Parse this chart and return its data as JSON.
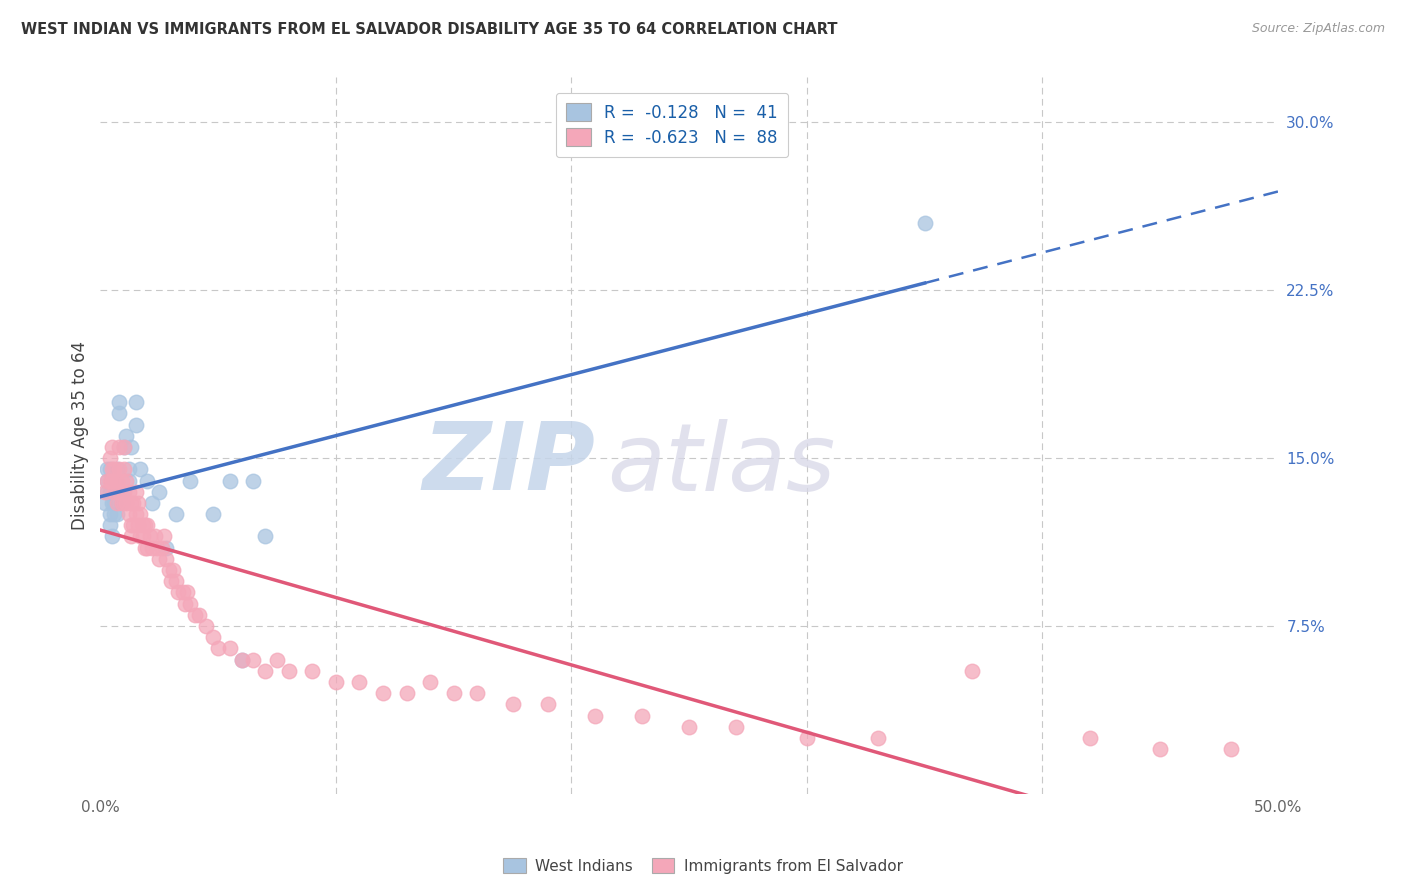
{
  "title": "WEST INDIAN VS IMMIGRANTS FROM EL SALVADOR DISABILITY AGE 35 TO 64 CORRELATION CHART",
  "source": "Source: ZipAtlas.com",
  "ylabel": "Disability Age 35 to 64",
  "xlim": [
    0.0,
    0.5
  ],
  "ylim": [
    0.0,
    0.32
  ],
  "yticks_right": [
    0.075,
    0.15,
    0.225,
    0.3
  ],
  "ytick_labels_right": [
    "7.5%",
    "15.0%",
    "22.5%",
    "30.0%"
  ],
  "grid_color": "#c8c8c8",
  "background_color": "#ffffff",
  "west_indians_color": "#a8c4e0",
  "el_salvador_color": "#f4a7b9",
  "west_indians_line_color": "#4472c4",
  "el_salvador_line_color": "#e05878",
  "legend_label_1": "R =  -0.128   N =  41",
  "legend_label_2": "R =  -0.623   N =  88",
  "legend_bottom_1": "West Indians",
  "legend_bottom_2": "Immigrants from El Salvador",
  "west_indians_x": [
    0.002,
    0.003,
    0.003,
    0.003,
    0.004,
    0.004,
    0.004,
    0.004,
    0.005,
    0.005,
    0.005,
    0.006,
    0.006,
    0.006,
    0.007,
    0.007,
    0.007,
    0.008,
    0.008,
    0.009,
    0.009,
    0.01,
    0.011,
    0.012,
    0.013,
    0.015,
    0.015,
    0.017,
    0.02,
    0.022,
    0.025,
    0.028,
    0.032,
    0.038,
    0.048,
    0.055,
    0.06,
    0.065,
    0.07,
    0.35,
    0.012
  ],
  "west_indians_y": [
    0.13,
    0.135,
    0.14,
    0.145,
    0.12,
    0.125,
    0.135,
    0.145,
    0.115,
    0.13,
    0.14,
    0.125,
    0.13,
    0.14,
    0.125,
    0.135,
    0.145,
    0.17,
    0.175,
    0.13,
    0.135,
    0.155,
    0.16,
    0.145,
    0.155,
    0.165,
    0.175,
    0.145,
    0.14,
    0.13,
    0.135,
    0.11,
    0.125,
    0.14,
    0.125,
    0.14,
    0.06,
    0.14,
    0.115,
    0.255,
    0.14
  ],
  "el_salvador_x": [
    0.002,
    0.003,
    0.004,
    0.004,
    0.005,
    0.005,
    0.005,
    0.006,
    0.006,
    0.007,
    0.007,
    0.008,
    0.008,
    0.008,
    0.009,
    0.009,
    0.01,
    0.01,
    0.01,
    0.011,
    0.011,
    0.012,
    0.012,
    0.013,
    0.013,
    0.013,
    0.014,
    0.014,
    0.015,
    0.015,
    0.016,
    0.016,
    0.017,
    0.017,
    0.018,
    0.018,
    0.019,
    0.019,
    0.02,
    0.02,
    0.021,
    0.022,
    0.023,
    0.024,
    0.025,
    0.026,
    0.027,
    0.028,
    0.029,
    0.03,
    0.031,
    0.032,
    0.033,
    0.035,
    0.036,
    0.037,
    0.038,
    0.04,
    0.042,
    0.045,
    0.048,
    0.05,
    0.055,
    0.06,
    0.065,
    0.07,
    0.075,
    0.08,
    0.09,
    0.1,
    0.11,
    0.12,
    0.13,
    0.14,
    0.15,
    0.16,
    0.175,
    0.19,
    0.21,
    0.23,
    0.25,
    0.27,
    0.3,
    0.33,
    0.37,
    0.42,
    0.45,
    0.48
  ],
  "el_salvador_y": [
    0.135,
    0.14,
    0.14,
    0.15,
    0.155,
    0.145,
    0.14,
    0.135,
    0.145,
    0.13,
    0.14,
    0.135,
    0.145,
    0.155,
    0.13,
    0.14,
    0.135,
    0.145,
    0.155,
    0.13,
    0.14,
    0.125,
    0.135,
    0.12,
    0.13,
    0.115,
    0.12,
    0.13,
    0.125,
    0.135,
    0.12,
    0.13,
    0.115,
    0.125,
    0.12,
    0.115,
    0.11,
    0.12,
    0.11,
    0.12,
    0.115,
    0.11,
    0.115,
    0.11,
    0.105,
    0.11,
    0.115,
    0.105,
    0.1,
    0.095,
    0.1,
    0.095,
    0.09,
    0.09,
    0.085,
    0.09,
    0.085,
    0.08,
    0.08,
    0.075,
    0.07,
    0.065,
    0.065,
    0.06,
    0.06,
    0.055,
    0.06,
    0.055,
    0.055,
    0.05,
    0.05,
    0.045,
    0.045,
    0.05,
    0.045,
    0.045,
    0.04,
    0.04,
    0.035,
    0.035,
    0.03,
    0.03,
    0.025,
    0.025,
    0.055,
    0.025,
    0.02,
    0.02
  ]
}
